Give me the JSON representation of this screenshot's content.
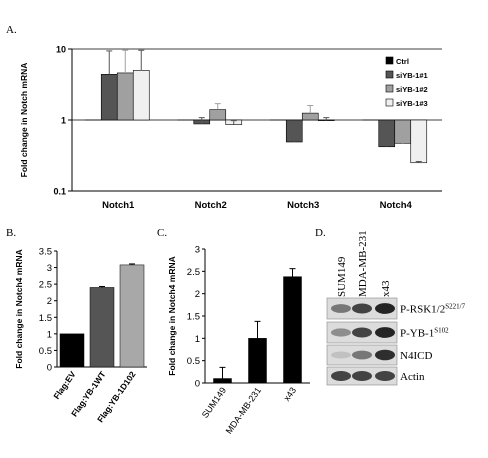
{
  "panels": {
    "A": "A.",
    "B": "B.",
    "C": "C.",
    "D": "D."
  },
  "chart_data": [
    {
      "panel": "A",
      "type": "bar",
      "ylabel": "Fold change in Notch mRNA",
      "yscale": "log",
      "ylim": [
        0.1,
        10
      ],
      "yticks": [
        "0.1",
        "1",
        "10"
      ],
      "categories": [
        "Notch1",
        "Notch2",
        "Notch3",
        "Notch4"
      ],
      "series": [
        {
          "name": "Ctrl",
          "color": "#000000",
          "values": [
            1.0,
            1.0,
            1.0,
            1.0
          ],
          "errors": [
            0,
            0,
            0,
            0
          ]
        },
        {
          "name": "siYB-1#1",
          "color": "#555555",
          "values": [
            4.4,
            0.88,
            0.49,
            0.42
          ],
          "errors": [
            5.0,
            0.2,
            0.02,
            0.12
          ]
        },
        {
          "name": "siYB-1#2",
          "color": "#a0a0a0",
          "values": [
            4.6,
            1.4,
            1.25,
            0.47
          ],
          "errors": [
            5.0,
            0.3,
            0.35,
            0.1
          ]
        },
        {
          "name": "siYB-1#3",
          "color": "#f0f0f0",
          "values": [
            5.0,
            0.86,
            0.98,
            0.25
          ],
          "errors": [
            4.6,
            0.12,
            0.1,
            0.01
          ]
        }
      ],
      "legend": "top-right",
      "gridlines": [
        1
      ]
    },
    {
      "panel": "B",
      "type": "bar",
      "ylabel": "Fold change in Notch4 mRNA",
      "ylim": [
        0,
        3.5
      ],
      "yticks": [
        "0",
        "0.5",
        "1",
        "1.5",
        "2",
        "2.5",
        "3",
        "3.5"
      ],
      "categories": [
        "Flag:EV",
        "Flag:YB-1WT",
        "Flag:YB-1D102"
      ],
      "values": [
        1.0,
        2.4,
        3.08
      ],
      "errors": [
        0,
        0.03,
        0.03
      ],
      "colors": [
        "#000000",
        "#555555",
        "#a8a8a8"
      ]
    },
    {
      "panel": "C",
      "type": "bar",
      "ylabel": "Fold change in Notch4 mRNA",
      "ylim": [
        0,
        3
      ],
      "yticks": [
        "0",
        "0.5",
        "1",
        "1.5",
        "2",
        "2.5",
        "3"
      ],
      "categories": [
        "SUM149",
        "MDA-MB-231",
        "x43"
      ],
      "values": [
        0.1,
        1.0,
        2.38
      ],
      "errors": [
        0.25,
        0.38,
        0.18
      ],
      "colors": [
        "#000000",
        "#000000",
        "#000000"
      ]
    }
  ],
  "blot": {
    "columns": [
      "SUM149",
      "MDA-MB-231",
      "x43"
    ],
    "rows": [
      {
        "label": "P-RSK1/2",
        "sup": "S221/7",
        "intensity": [
          0.55,
          0.8,
          0.95
        ]
      },
      {
        "label": "P-YB-1",
        "sup": "S102",
        "intensity": [
          0.45,
          0.8,
          0.95
        ]
      },
      {
        "label": "N4ICD",
        "sup": "",
        "intensity": [
          0.2,
          0.55,
          0.9
        ]
      },
      {
        "label": "Actin",
        "sup": "",
        "intensity": [
          0.8,
          0.8,
          0.8
        ]
      }
    ]
  }
}
